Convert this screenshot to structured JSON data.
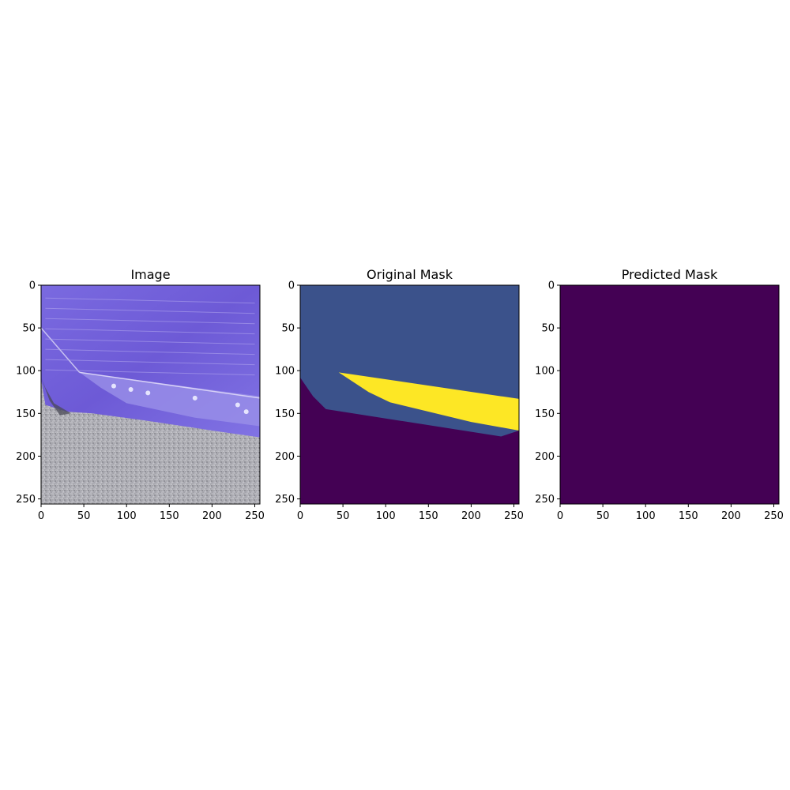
{
  "chart_data": [
    {
      "type": "heatmap",
      "title": "Image",
      "content": "photo",
      "x_ticks": [
        0,
        50,
        100,
        150,
        200,
        250
      ],
      "y_ticks": [
        0,
        50,
        100,
        150,
        200,
        250
      ],
      "xlim": [
        0,
        256
      ],
      "ylim": [
        256,
        0
      ],
      "grid": false
    },
    {
      "type": "heatmap",
      "title": "Original Mask",
      "content": "mask",
      "x_ticks": [
        0,
        50,
        100,
        150,
        200,
        250
      ],
      "y_ticks": [
        0,
        50,
        100,
        150,
        200,
        250
      ],
      "xlim": [
        0,
        256
      ],
      "ylim": [
        256,
        0
      ],
      "grid": false,
      "background_color": "#440154",
      "regions": [
        {
          "class": 1,
          "color": "#3b528b",
          "polygon": [
            [
              0,
              0
            ],
            [
              256,
              0
            ],
            [
              256,
              170
            ],
            [
              235,
              177
            ],
            [
              30,
              145
            ],
            [
              15,
              130
            ],
            [
              0,
              108
            ]
          ]
        },
        {
          "class": 2,
          "color": "#fde725",
          "polygon": [
            [
              45,
              102
            ],
            [
              256,
              133
            ],
            [
              256,
              170
            ],
            [
              200,
              160
            ],
            [
              105,
              137
            ],
            [
              80,
              125
            ]
          ]
        }
      ]
    },
    {
      "type": "heatmap",
      "title": "Predicted Mask",
      "content": "solid",
      "x_ticks": [
        0,
        50,
        100,
        150,
        200,
        250
      ],
      "y_ticks": [
        0,
        50,
        100,
        150,
        200,
        250
      ],
      "xlim": [
        0,
        256
      ],
      "ylim": [
        256,
        0
      ],
      "grid": false,
      "background_color": "#440154"
    }
  ]
}
